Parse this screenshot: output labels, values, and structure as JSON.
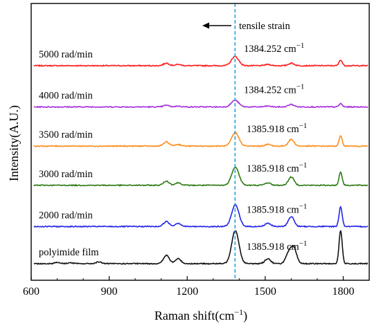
{
  "chart_data": {
    "type": "line",
    "xlabel": "Raman shift(cm",
    "xlabel_sup": "−1",
    "xlabel_close": ")",
    "ylabel": "Intensity(A.U.)",
    "xlim": [
      600,
      1900
    ],
    "xticks": [
      600,
      900,
      1200,
      1500,
      1800
    ],
    "xtick_labels": [
      "600",
      "900",
      "1200",
      "1500",
      "1800"
    ],
    "minor_x_step": 100,
    "grid": false,
    "reference_line": {
      "x": 1384,
      "color": "#1e9bd7",
      "style": "dashed"
    },
    "annotation": {
      "text": "tensile strain",
      "arrow_direction": "left"
    },
    "series": [
      {
        "name": "5000 rad/min",
        "color": "#ff1a1a",
        "peak_label": "1384.252 cm",
        "peak_label_sup": "−1",
        "baseline": 0.96,
        "peaks": [
          [
            1120,
            0.03
          ],
          [
            1165,
            0.015
          ],
          [
            1384,
            0.11
          ],
          [
            1510,
            0.015
          ],
          [
            1600,
            0.03
          ],
          [
            1790,
            0.07
          ]
        ]
      },
      {
        "name": "4000 rad/min",
        "color": "#a52ddc",
        "peak_label": "1384.252 cm",
        "peak_label_sup": "−1",
        "baseline": 0.76,
        "peaks": [
          [
            1120,
            0.02
          ],
          [
            1165,
            0.01
          ],
          [
            1384,
            0.08
          ],
          [
            1510,
            0.01
          ],
          [
            1600,
            0.03
          ],
          [
            1790,
            0.04
          ]
        ]
      },
      {
        "name": "3500 rad/min",
        "color": "#ff8c1a",
        "peak_label": "1385.918 cm",
        "peak_label_sup": "−1",
        "baseline": 0.57,
        "peaks": [
          [
            1120,
            0.05
          ],
          [
            1165,
            0.02
          ],
          [
            1385,
            0.16
          ],
          [
            1510,
            0.02
          ],
          [
            1600,
            0.08
          ],
          [
            1790,
            0.12
          ]
        ]
      },
      {
        "name": "3000 rad/min",
        "color": "#2d7a14",
        "peak_label": "1385.918 cm",
        "peak_label_sup": "−1",
        "baseline": 0.38,
        "peaks": [
          [
            1120,
            0.05
          ],
          [
            1165,
            0.03
          ],
          [
            1385,
            0.22
          ],
          [
            1510,
            0.03
          ],
          [
            1600,
            0.1
          ],
          [
            1790,
            0.16
          ]
        ]
      },
      {
        "name": "2000 rad/min",
        "color": "#2323e6",
        "peak_label": "1385.918 cm",
        "peak_label_sup": "−1",
        "baseline": 0.18,
        "peaks": [
          [
            1120,
            0.06
          ],
          [
            1165,
            0.04
          ],
          [
            1385,
            0.26
          ],
          [
            1510,
            0.04
          ],
          [
            1600,
            0.12
          ],
          [
            1790,
            0.24
          ]
        ]
      },
      {
        "name": "polyimide film",
        "color": "#111111",
        "peak_label": "1385.918 cm",
        "peak_label_sup": "−1",
        "baseline": 0.0,
        "peaks": [
          [
            700,
            0.015
          ],
          [
            750,
            0.01
          ],
          [
            860,
            0.02
          ],
          [
            1120,
            0.1
          ],
          [
            1165,
            0.06
          ],
          [
            1385,
            0.4
          ],
          [
            1510,
            0.06
          ],
          [
            1590,
            0.12
          ],
          [
            1610,
            0.18
          ],
          [
            1790,
            0.4
          ]
        ]
      }
    ]
  }
}
